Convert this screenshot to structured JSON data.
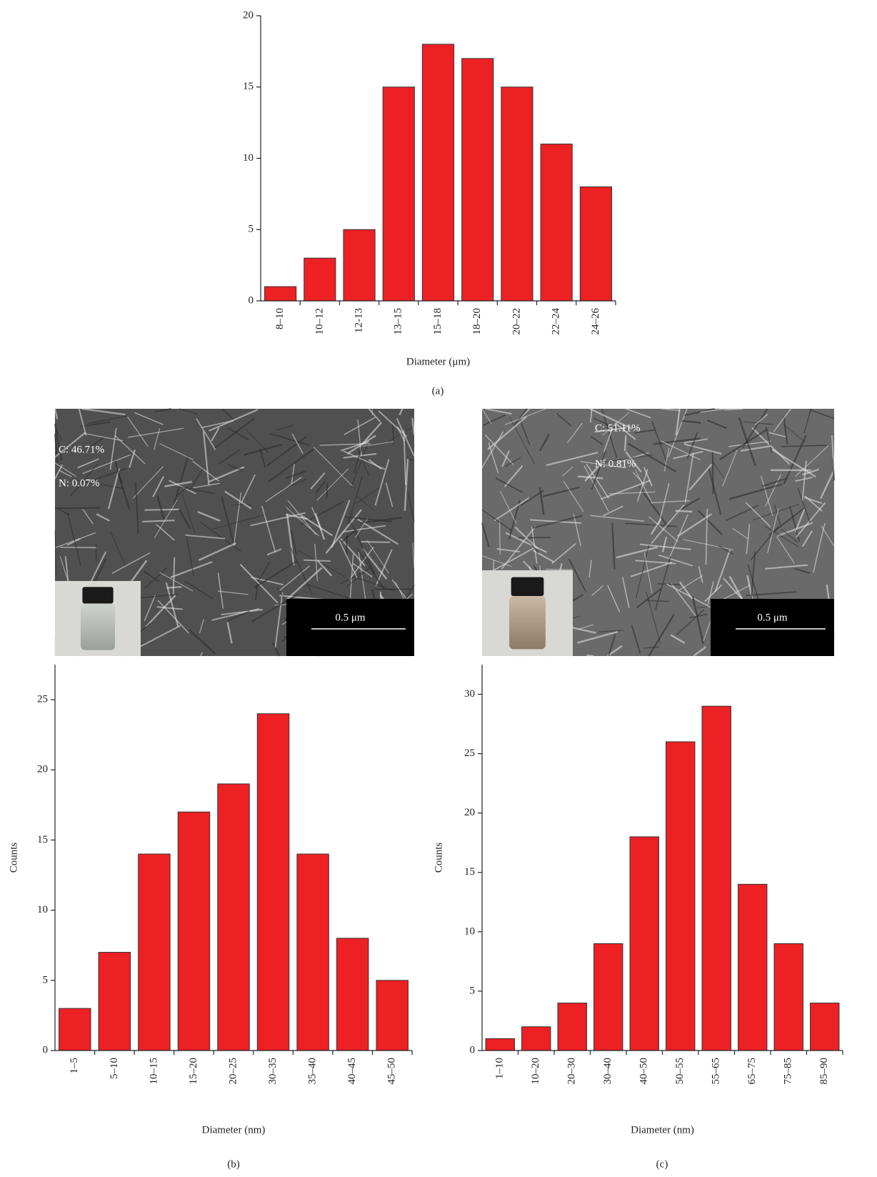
{
  "chart_data": [
    {
      "type": "bar",
      "caption": "(a)",
      "x_label": "Diameter (μm)",
      "categories": [
        "8–10",
        "10–12",
        "12-13",
        "13–15",
        "15–18",
        "18–20",
        "20–22",
        "22–24",
        "24–26"
      ],
      "values": [
        1,
        3,
        5,
        15,
        18,
        17,
        15,
        11,
        8
      ],
      "color": "#ed2024",
      "ylim": [
        0,
        20
      ],
      "yticks": [
        0,
        5,
        10,
        15,
        20
      ]
    },
    {
      "type": "bar",
      "caption": "(b)",
      "x_label": "Diameter (nm)",
      "y_label": "Counts",
      "categories": [
        "1–5",
        "5–10",
        "10–15",
        "15–20",
        "20–25",
        "30–35",
        "35–40",
        "40–45",
        "45–50"
      ],
      "values": [
        3,
        7,
        14,
        17,
        19,
        24,
        14,
        8,
        5
      ],
      "color": "#ed2024",
      "ylim": [
        0,
        27.5
      ],
      "yticks": [
        0,
        5,
        10,
        15,
        20,
        25
      ]
    },
    {
      "type": "bar",
      "caption": "(c)",
      "x_label": "Diameter (nm)",
      "y_label": "Counts",
      "categories": [
        "1–10",
        "10–20",
        "20–30",
        "30–40",
        "40–50",
        "50–55",
        "55–65",
        "65–75",
        "75–85",
        "85–90"
      ],
      "values": [
        1,
        2,
        4,
        9,
        18,
        26,
        29,
        14,
        9,
        4
      ],
      "color": "#ed2024",
      "ylim": [
        0,
        32.5
      ],
      "yticks": [
        0,
        5,
        10,
        15,
        20,
        25,
        30
      ]
    }
  ],
  "micrographs": [
    {
      "annotations": [
        "C: 46.71%",
        "N: 0.07%"
      ],
      "scale_bar": "0.5 μm"
    },
    {
      "annotations": [
        "C: 51.11%",
        "N: 0.81%"
      ],
      "scale_bar": "0.5 μm"
    }
  ]
}
